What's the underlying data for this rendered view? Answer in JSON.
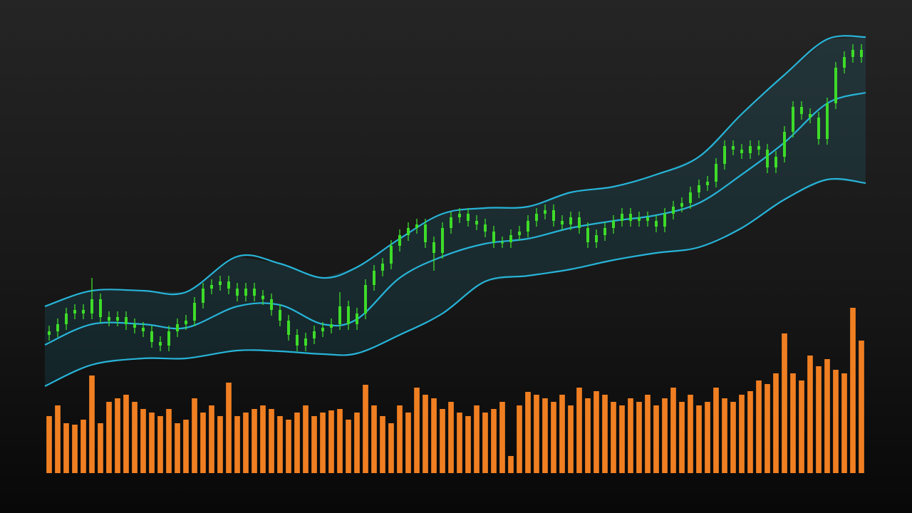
{
  "chart_data": {
    "type": "candlestick",
    "xlim": [
      -0.5,
      95.5
    ],
    "ylim": [
      40,
      600
    ],
    "y2lim": [
      0,
      664
    ],
    "color": "#3ddc28",
    "open": [
      130,
      135,
      145,
      160,
      165,
      160,
      180,
      155,
      150,
      155,
      145,
      140,
      135,
      120,
      115,
      135,
      145,
      150,
      175,
      195,
      200,
      205,
      195,
      185,
      195,
      185,
      180,
      165,
      150,
      130,
      115,
      125,
      135,
      140,
      145,
      170,
      145,
      160,
      200,
      220,
      230,
      255,
      270,
      280,
      285,
      260,
      245,
      280,
      295,
      300,
      290,
      285,
      275,
      260,
      260,
      270,
      275,
      290,
      300,
      305,
      290,
      285,
      295,
      280,
      260,
      270,
      280,
      290,
      300,
      290,
      295,
      290,
      282,
      300,
      310,
      315,
      330,
      340,
      345,
      370,
      395,
      390,
      385,
      395,
      390,
      365,
      380,
      415,
      450,
      440,
      435,
      405,
      455,
      505,
      520,
      530
    ],
    "high": [
      143,
      153,
      168,
      173,
      173,
      210,
      188,
      163,
      163,
      163,
      153,
      148,
      143,
      128,
      143,
      153,
      158,
      183,
      203,
      208,
      213,
      213,
      203,
      203,
      203,
      193,
      188,
      173,
      158,
      138,
      133,
      143,
      148,
      153,
      190,
      178,
      168,
      208,
      228,
      238,
      263,
      278,
      288,
      293,
      293,
      268,
      288,
      303,
      308,
      308,
      298,
      293,
      283,
      268,
      278,
      283,
      298,
      308,
      313,
      313,
      298,
      303,
      303,
      288,
      278,
      288,
      298,
      308,
      308,
      303,
      303,
      298,
      308,
      318,
      323,
      338,
      348,
      353,
      378,
      403,
      403,
      398,
      403,
      403,
      398,
      388,
      423,
      458,
      458,
      448,
      443,
      463,
      513,
      528,
      538,
      538
    ],
    "low": [
      122,
      127,
      137,
      152,
      152,
      152,
      147,
      142,
      142,
      137,
      132,
      127,
      112,
      107,
      107,
      127,
      137,
      142,
      167,
      187,
      192,
      187,
      177,
      177,
      177,
      172,
      157,
      142,
      122,
      107,
      107,
      117,
      127,
      132,
      137,
      137,
      137,
      152,
      192,
      212,
      222,
      247,
      262,
      272,
      252,
      220,
      237,
      272,
      287,
      282,
      277,
      267,
      252,
      252,
      252,
      262,
      267,
      282,
      292,
      282,
      277,
      277,
      272,
      252,
      252,
      262,
      272,
      282,
      282,
      282,
      282,
      274,
      274,
      292,
      302,
      307,
      322,
      332,
      337,
      362,
      382,
      377,
      377,
      382,
      357,
      357,
      372,
      407,
      432,
      427,
      397,
      397,
      447,
      497,
      512,
      512
    ],
    "close": [
      135,
      145,
      160,
      165,
      160,
      180,
      155,
      150,
      155,
      145,
      140,
      135,
      120,
      115,
      135,
      145,
      150,
      175,
      195,
      200,
      205,
      195,
      185,
      195,
      185,
      180,
      165,
      150,
      130,
      115,
      125,
      135,
      140,
      145,
      170,
      145,
      160,
      200,
      220,
      230,
      255,
      270,
      280,
      285,
      260,
      245,
      280,
      295,
      300,
      290,
      285,
      275,
      260,
      260,
      270,
      275,
      290,
      300,
      305,
      290,
      285,
      295,
      280,
      260,
      270,
      280,
      290,
      300,
      290,
      295,
      290,
      282,
      300,
      310,
      315,
      330,
      340,
      345,
      370,
      395,
      390,
      385,
      395,
      390,
      365,
      380,
      415,
      450,
      440,
      435,
      405,
      455,
      505,
      520,
      530,
      520
    ],
    "volume": [
      80,
      95,
      70,
      68,
      75,
      137,
      70,
      100,
      105,
      110,
      100,
      90,
      85,
      80,
      90,
      70,
      75,
      105,
      85,
      95,
      80,
      127,
      80,
      85,
      90,
      95,
      90,
      80,
      75,
      85,
      95,
      80,
      85,
      88,
      90,
      75,
      85,
      124,
      95,
      80,
      70,
      95,
      85,
      120,
      110,
      105,
      90,
      100,
      85,
      80,
      95,
      85,
      90,
      100,
      24,
      95,
      114,
      110,
      105,
      100,
      110,
      95,
      120,
      105,
      115,
      110,
      100,
      95,
      105,
      100,
      110,
      95,
      105,
      120,
      100,
      110,
      95,
      100,
      120,
      105,
      100,
      110,
      115,
      130,
      125,
      140,
      196,
      140,
      130,
      165,
      150,
      160,
      145,
      140,
      232,
      186
    ],
    "volume_color": "#f07f22",
    "band_color": "#27b4d8",
    "band_x": [
      -0.5,
      5,
      11,
      16,
      22,
      27,
      32,
      36,
      41,
      46,
      51,
      56,
      61,
      66,
      71,
      76,
      81,
      86,
      91,
      95.5
    ],
    "bands": [
      {
        "values": [
          170,
          192,
          192,
          190,
          240,
          230,
          210,
          225,
          265,
          300,
          308,
          310,
          330,
          338,
          355,
          380,
          440,
          495,
          545,
          548
        ]
      },
      {
        "values": [
          116,
          145,
          145,
          140,
          170,
          172,
          145,
          152,
          210,
          240,
          258,
          265,
          280,
          290,
          298,
          315,
          355,
          400,
          455,
          470
        ]
      },
      {
        "values": [
          58,
          88,
          97,
          97,
          108,
          107,
          103,
          104,
          130,
          160,
          205,
          213,
          222,
          235,
          245,
          253,
          280,
          320,
          348,
          343
        ]
      }
    ]
  }
}
